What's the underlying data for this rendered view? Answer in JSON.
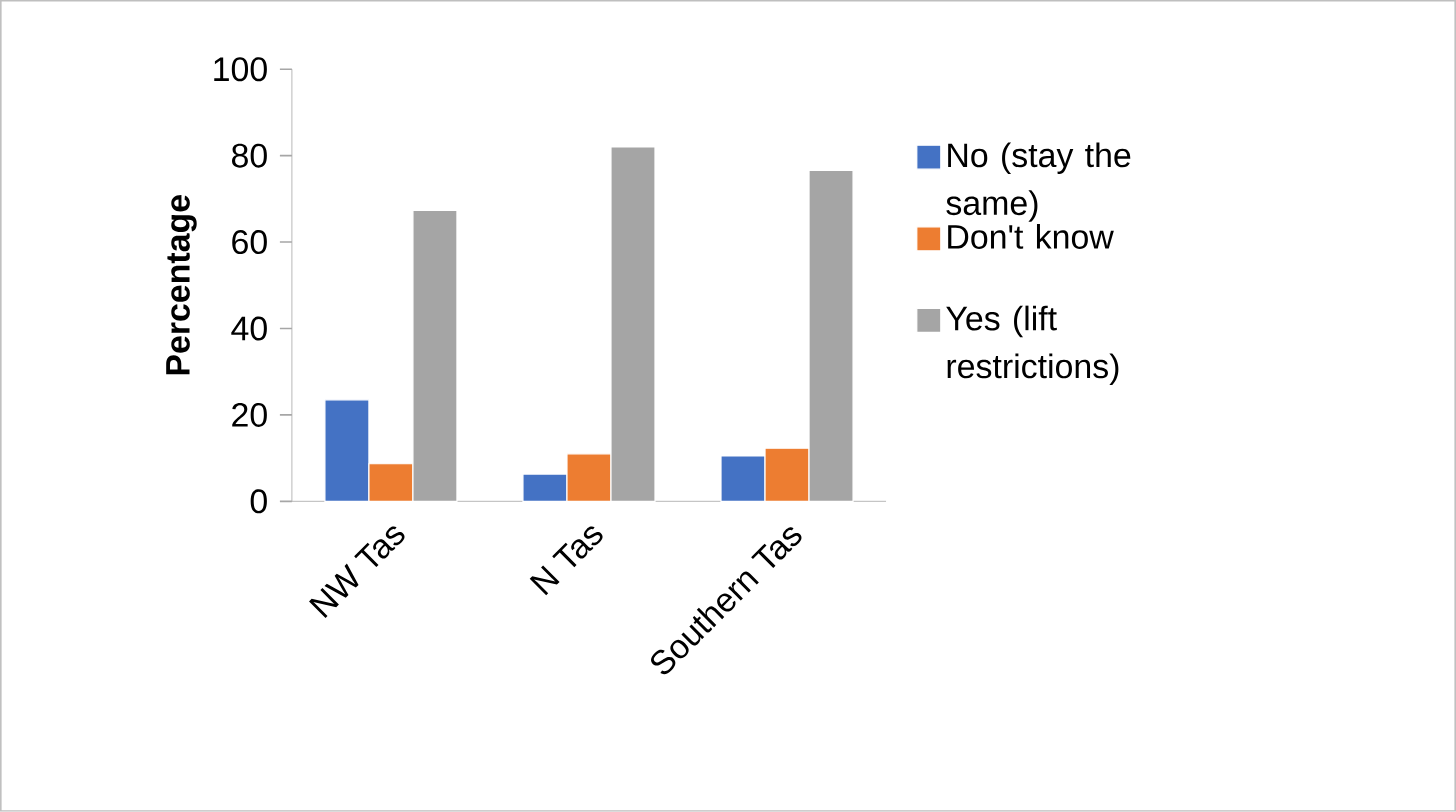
{
  "chart_data": {
    "type": "bar",
    "ylabel": "Percentage",
    "categories": [
      "NW Tas",
      "N Tas",
      "Southern Tas"
    ],
    "series": [
      {
        "name": "No (stay the same)",
        "color": "#4472c4",
        "values": [
          23.5,
          6.3,
          10.5
        ]
      },
      {
        "name": "Don't know",
        "color": "#ed7d31",
        "values": [
          8.7,
          11.0,
          12.3
        ]
      },
      {
        "name": "Yes (lift restrictions)",
        "color": "#a5a5a5",
        "values": [
          67.3,
          82.0,
          76.6
        ]
      }
    ],
    "ylim": [
      0,
      100
    ],
    "yticks": [
      0,
      20,
      40,
      60,
      80,
      100
    ],
    "grid": false,
    "legend": "right"
  }
}
